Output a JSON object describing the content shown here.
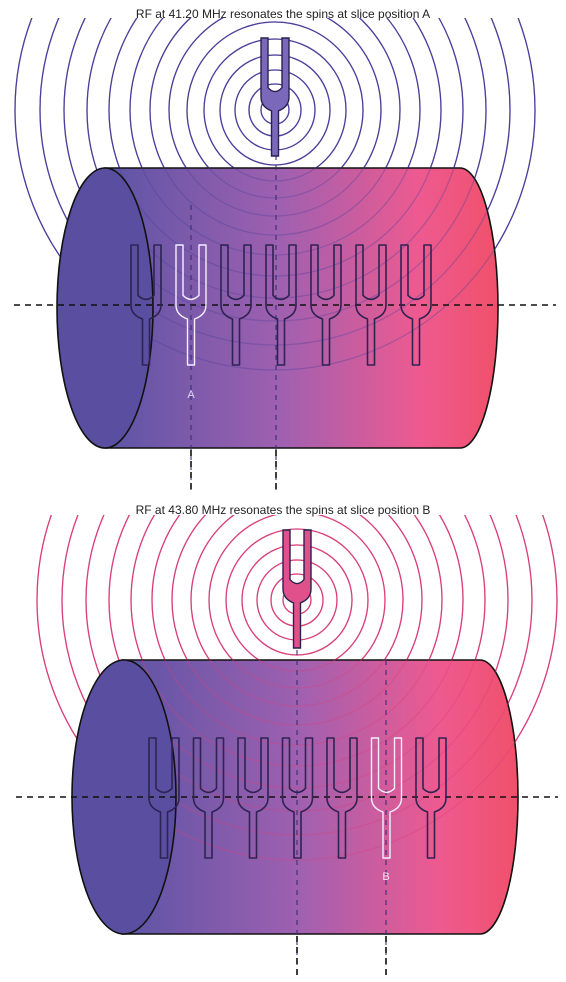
{
  "panels": [
    {
      "caption": "RF at 41.20 MHz resonates the spins at slice position A",
      "slice_label": "A",
      "wave_color": "#4b3f9a",
      "tuning_fork_color": "#7a68bb",
      "highlighted_fork": 2,
      "fork_count": 7
    },
    {
      "caption": "RF at 43.80 MHz resonates the spins at slice position B",
      "slice_label": "B",
      "wave_color": "#d9407a",
      "tuning_fork_color": "#e0508a",
      "highlighted_fork": 6,
      "fork_count": 7
    }
  ],
  "colors": {
    "gradient_start": "#5f55a6",
    "gradient_mid": "#b65fa8",
    "gradient_end": "#f05070",
    "end_cap": "#5a4ea0",
    "outline": "#111111"
  }
}
